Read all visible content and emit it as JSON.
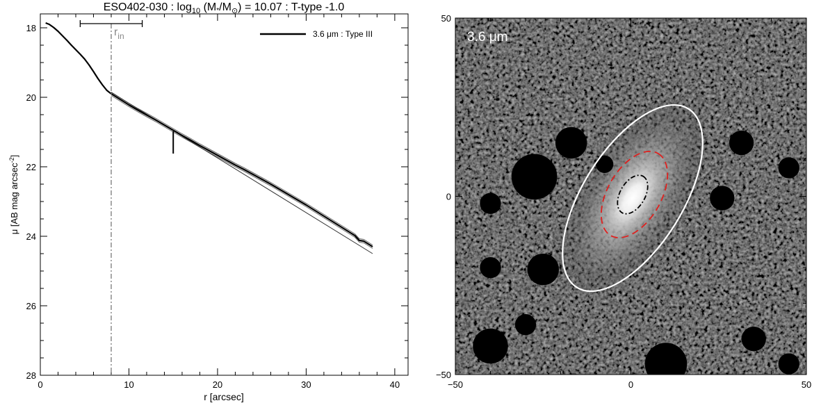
{
  "figure": {
    "title": {
      "prefix": "ESO402-030 : log",
      "sub": "10",
      "mid": " (M",
      "star": "*",
      "slash": "/M",
      "sun": "⊙",
      "suffix": ") = 10.07 : T-type -1.0"
    }
  },
  "chart_data": [
    {
      "type": "line",
      "xlabel": "r [arcsec]",
      "ylabel": {
        "main": "μ [AB mag arcsec",
        "sup": "-2",
        "close": "]"
      },
      "xlim": [
        0,
        41.5
      ],
      "ylim": [
        28,
        17.6
      ],
      "y_inverted": true,
      "xticks": [
        0,
        10,
        20,
        30,
        40
      ],
      "yticks": [
        18,
        20,
        22,
        24,
        26,
        28
      ],
      "grid": false,
      "legend": {
        "position": "top-right",
        "entries": [
          {
            "label": "3.6 μm : Type III",
            "color": "#000000"
          }
        ]
      },
      "series": [
        {
          "name": "3.6 μm : Type III",
          "x": [
            0.6,
            1,
            1.5,
            2,
            2.5,
            3,
            3.5,
            4,
            4.5,
            5,
            5.5,
            6,
            6.5,
            7,
            7.5,
            8,
            9,
            10,
            11,
            12,
            13,
            14,
            15,
            16,
            17,
            18,
            19,
            20,
            21,
            22,
            23,
            24,
            25,
            26,
            27,
            28,
            29,
            30,
            31,
            32,
            33,
            34,
            35,
            35.5,
            36,
            36.5,
            37,
            37.5
          ],
          "y": [
            17.86,
            17.9,
            17.99,
            18.1,
            18.23,
            18.36,
            18.5,
            18.63,
            18.76,
            18.9,
            19.07,
            19.26,
            19.46,
            19.64,
            19.8,
            19.9,
            20.06,
            20.22,
            20.37,
            20.51,
            20.65,
            20.8,
            20.95,
            21.1,
            21.24,
            21.39,
            21.53,
            21.67,
            21.81,
            21.95,
            22.08,
            22.22,
            22.36,
            22.5,
            22.65,
            22.8,
            22.95,
            23.1,
            23.26,
            23.42,
            23.58,
            23.74,
            23.9,
            23.98,
            24.12,
            24.14,
            24.22,
            24.3
          ]
        }
      ],
      "uncertainty_band": 0.05,
      "fit_segments": [
        {
          "x": [
            8,
            37.5
          ],
          "y": [
            19.86,
            24.5
          ]
        }
      ],
      "annotations": {
        "r_in_label": "r",
        "r_in_sub": "in",
        "r_in": 8,
        "r_in_range": [
          4.5,
          11.5
        ],
        "r_in_bar_y": 17.35,
        "marker": {
          "x": 15,
          "y": [
            20.98,
            21.62
          ]
        }
      },
      "colors": {
        "profile": "#000000",
        "band": "#666666",
        "fit": "#333333",
        "r_in_line": "#777777",
        "r_in_text": "#888888"
      }
    },
    {
      "type": "heatmap",
      "label": "3.6 μm",
      "xlim": [
        -50,
        50
      ],
      "ylim": [
        -50,
        50
      ],
      "xticks": [
        -50,
        0,
        50
      ],
      "yticks": [
        -50,
        0,
        50
      ],
      "xticklabels": [
        "−50",
        "0",
        "50"
      ],
      "yticklabels": [
        "−50",
        "0",
        "50"
      ],
      "background": "#0b0b0b",
      "ellipses": [
        {
          "center": [
            0.5,
            -0.5
          ],
          "a": 30,
          "b": 14,
          "angle_deg": 58,
          "color": "#ffffff",
          "style": "solid"
        },
        {
          "center": [
            1,
            0.5
          ],
          "a": 13.5,
          "b": 7.5,
          "angle_deg": 60,
          "color": "#e0201e",
          "style": "dashed"
        },
        {
          "center": [
            0.5,
            0.5
          ],
          "a": 6,
          "b": 3.5,
          "angle_deg": 60,
          "color": "#000000",
          "style": "dashdot"
        }
      ],
      "masks": [
        {
          "x": -27.5,
          "y": 5.5,
          "r": 6.5
        },
        {
          "x": -17,
          "y": 15,
          "r": 4.5
        },
        {
          "x": -7.5,
          "y": 9,
          "r": 2.5
        },
        {
          "x": -40,
          "y": -2,
          "r": 3
        },
        {
          "x": -40,
          "y": -20,
          "r": 3
        },
        {
          "x": -25,
          "y": -20.5,
          "r": 4.5
        },
        {
          "x": -30,
          "y": -36,
          "r": 3
        },
        {
          "x": 26,
          "y": -0.5,
          "r": 3.5
        },
        {
          "x": 31.5,
          "y": 15,
          "r": 3.5
        },
        {
          "x": 45,
          "y": 8,
          "r": 3
        },
        {
          "x": -40,
          "y": -42,
          "r": 5
        },
        {
          "x": 35,
          "y": -40,
          "r": 3.5
        },
        {
          "x": 10,
          "y": -47,
          "r": 6
        },
        {
          "x": 45,
          "y": -47,
          "r": 3
        }
      ]
    }
  ]
}
